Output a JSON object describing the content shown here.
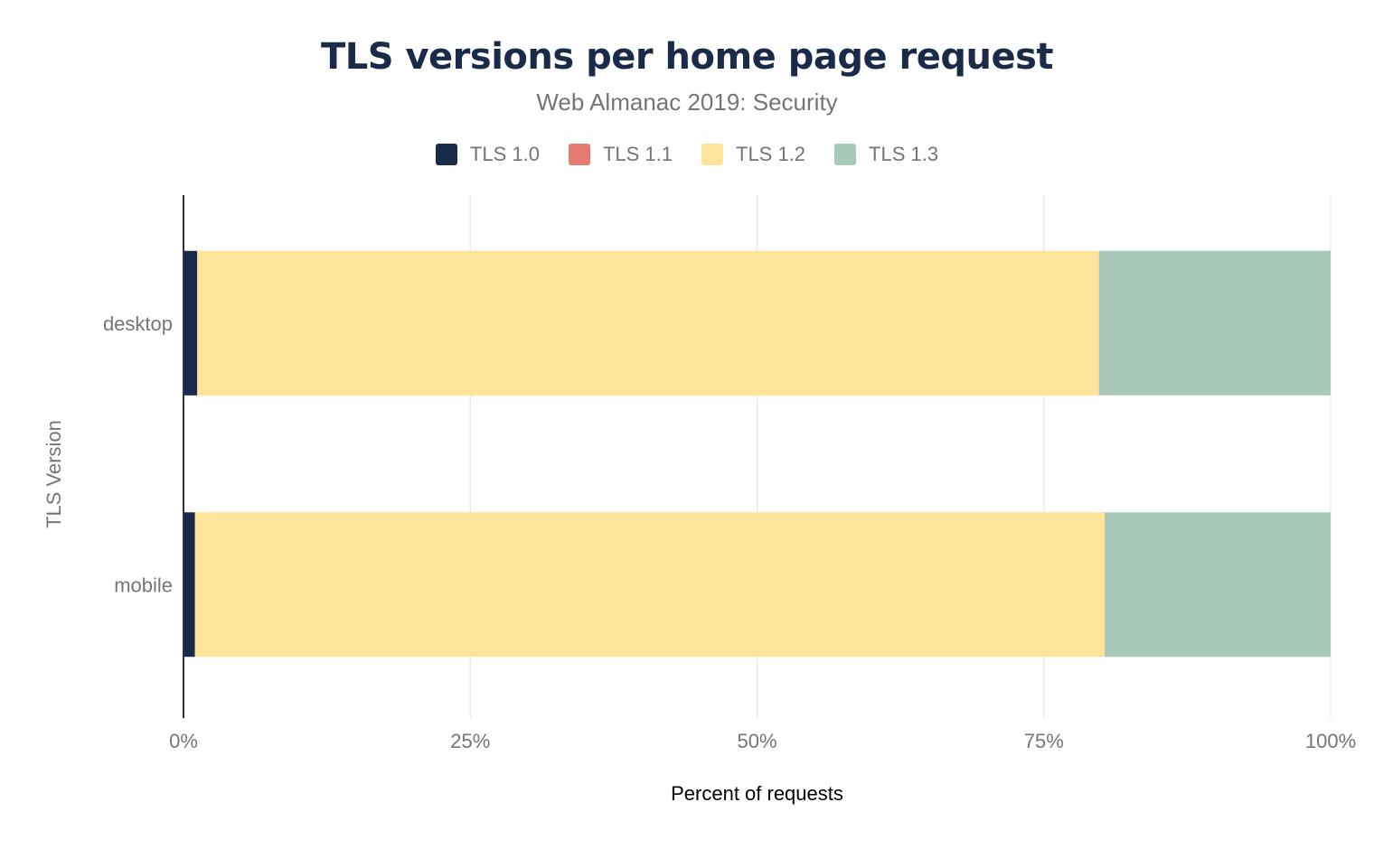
{
  "chart_data": {
    "type": "bar",
    "orientation": "horizontal",
    "stacked": true,
    "title": "TLS versions per home page request",
    "subtitle": "Web Almanac 2019: Security",
    "xlabel": "Percent of requests",
    "ylabel": "TLS Version",
    "xlim": [
      0,
      100
    ],
    "xticks": [
      "0%",
      "25%",
      "50%",
      "75%",
      "100%"
    ],
    "xtick_values": [
      0,
      25,
      50,
      75,
      100
    ],
    "grid": true,
    "legend_position": "top",
    "categories": [
      "desktop",
      "mobile"
    ],
    "series": [
      {
        "name": "TLS 1.0",
        "color": "#1a2b49",
        "values": [
          1.2,
          1.0
        ]
      },
      {
        "name": "TLS 1.1",
        "color": "#e57a71",
        "values": [
          0.0,
          0.0
        ]
      },
      {
        "name": "TLS 1.2",
        "color": "#fee49a",
        "values": [
          78.6,
          79.3
        ]
      },
      {
        "name": "TLS 1.3",
        "color": "#a8c8b9",
        "values": [
          20.2,
          19.7
        ]
      }
    ]
  }
}
